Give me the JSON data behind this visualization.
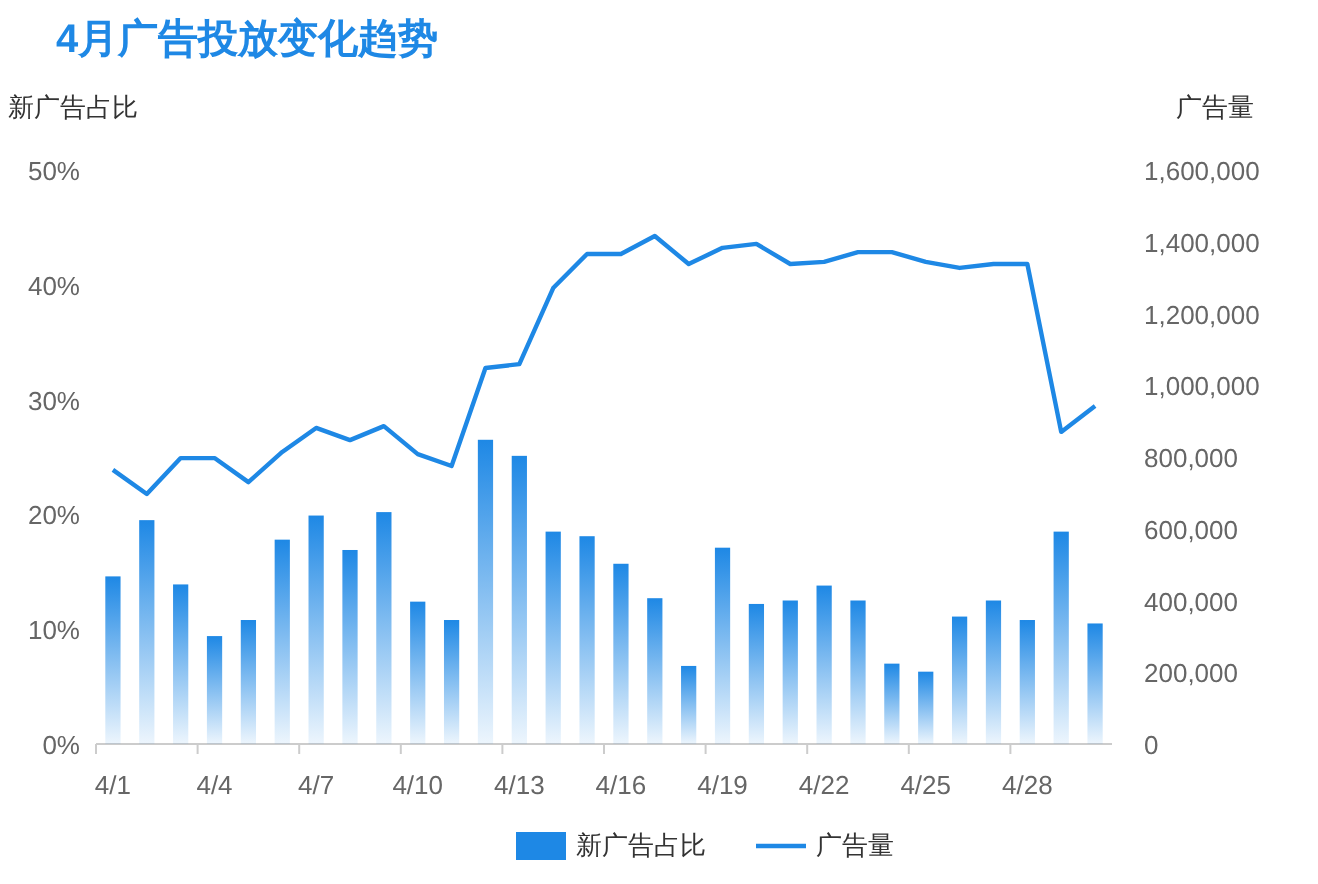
{
  "chart_data": {
    "type": "bar",
    "title": "4月广告投放变化趋势",
    "ylabel": "新广告占比",
    "y2label": "广告量",
    "categories": [
      "4/1",
      null,
      null,
      "4/4",
      null,
      null,
      "4/7",
      null,
      null,
      "4/10",
      null,
      null,
      "4/13",
      null,
      null,
      "4/16",
      null,
      null,
      "4/19",
      null,
      null,
      "4/22",
      null,
      null,
      "4/25",
      null,
      null,
      "4/28",
      null,
      null
    ],
    "series": [
      {
        "name": "新广告占比",
        "color": "#1e88e5",
        "values": [
          14.6,
          19.5,
          13.9,
          9.4,
          10.8,
          17.8,
          19.9,
          16.9,
          20.2,
          12.4,
          10.8,
          26.5,
          25.1,
          18.5,
          18.1,
          15.7,
          12.7,
          6.8,
          17.1,
          12.2,
          12.5,
          13.8,
          12.5,
          7.0,
          6.3,
          11.1,
          12.5,
          10.8,
          18.5,
          10.5
        ]
      },
      {
        "name": "广告量",
        "type": "line",
        "axis": "y2",
        "color": "#1e88e5",
        "values": [
          764000,
          697000,
          797000,
          797000,
          730000,
          814000,
          881000,
          847000,
          886000,
          808000,
          775000,
          1048000,
          1059000,
          1271000,
          1366000,
          1366000,
          1416000,
          1338000,
          1383000,
          1394000,
          1338000,
          1344000,
          1371000,
          1371000,
          1344000,
          1327000,
          1338000,
          1338000,
          870000,
          942000
        ]
      }
    ],
    "ylim": [
      0,
      50
    ],
    "yticks": [
      {
        "value": 0,
        "label": "0%"
      },
      {
        "value": 10,
        "label": "10%"
      },
      {
        "value": 20,
        "label": "20%"
      },
      {
        "value": 30,
        "label": "30%"
      },
      {
        "value": 40,
        "label": "40%"
      },
      {
        "value": 50,
        "label": "50%"
      }
    ],
    "y2lim": [
      0,
      1600000
    ],
    "y2ticks": [
      {
        "value": 0,
        "label": "0"
      },
      {
        "value": 200000,
        "label": "200,000"
      },
      {
        "value": 400000,
        "label": "400,000"
      },
      {
        "value": 600000,
        "label": "600,000"
      },
      {
        "value": 800000,
        "label": "800,000"
      },
      {
        "value": 1000000,
        "label": "1,000,000"
      },
      {
        "value": 1200000,
        "label": "1,200,000"
      },
      {
        "value": 1400000,
        "label": "1,400,000"
      },
      {
        "value": 1600000,
        "label": "1,600,000"
      }
    ],
    "grid": false,
    "legend": "bottom",
    "marker": "none"
  }
}
